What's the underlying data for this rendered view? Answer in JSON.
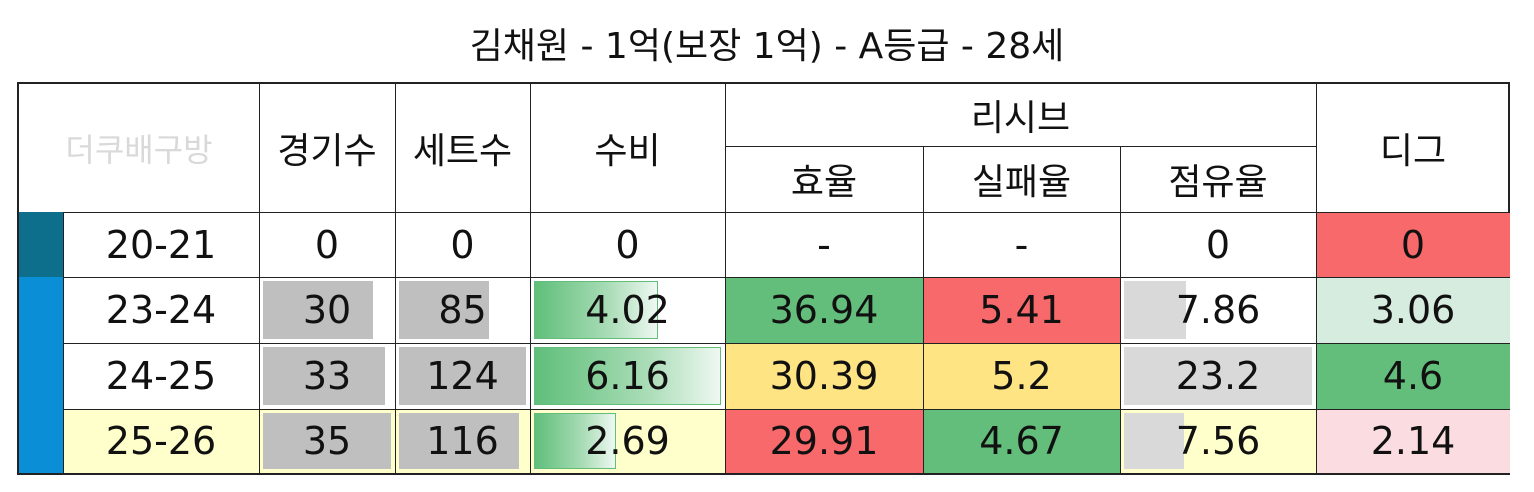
{
  "title": "김채원 - 1억(보장 1억) - A등급 - 28세",
  "header": {
    "brand": "더쿠배구방",
    "games": "경기수",
    "sets": "세트수",
    "defense": "수비",
    "reception": "리시브",
    "efficiency": "효율",
    "fail_rate": "실패율",
    "share": "점유율",
    "dig": "디그"
  },
  "rows": [
    {
      "season": "20-21",
      "games": "0",
      "sets": "0",
      "defense": "0",
      "efficiency": "-",
      "fail_rate": "-",
      "share": "0",
      "dig": "0"
    },
    {
      "season": "23-24",
      "games": "30",
      "sets": "85",
      "defense": "4.02",
      "efficiency": "36.94",
      "fail_rate": "5.41",
      "share": "7.86",
      "dig": "3.06"
    },
    {
      "season": "24-25",
      "games": "33",
      "sets": "124",
      "defense": "6.16",
      "efficiency": "30.39",
      "fail_rate": "5.2",
      "share": "23.2",
      "dig": "4.6"
    },
    {
      "season": "25-26",
      "games": "35",
      "sets": "116",
      "defense": "2.69",
      "efficiency": "29.91",
      "fail_rate": "4.67",
      "share": "7.56",
      "dig": "2.14"
    }
  ],
  "colors": {
    "marker_first": "#0e6f8c",
    "marker_other": "#0a8fd6",
    "highlight_row": "#ffffcc",
    "green_strong": "#63be7b",
    "yellow": "#ffe484",
    "red": "#f8696b",
    "green_light": "#d6ecdf",
    "pink_light": "#fbdde1"
  }
}
